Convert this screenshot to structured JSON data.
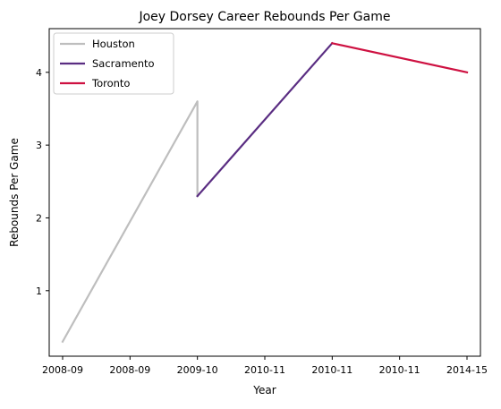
{
  "chart_data": {
    "type": "line",
    "title": "Joey Dorsey Career Rebounds Per Game",
    "xlabel": "Year",
    "ylabel": "Rebounds Per Game",
    "x_tick_labels": [
      "2008-09",
      "2008-09",
      "2009-10",
      "2010-11",
      "2010-11",
      "2010-11",
      "2014-15"
    ],
    "x_index_range": [
      0,
      6
    ],
    "ylim": [
      0.1,
      4.6
    ],
    "y_ticks": [
      1,
      2,
      3,
      4
    ],
    "grid": false,
    "legend_position": "top-left",
    "series": [
      {
        "name": "Houston",
        "color": "#bebebe",
        "points": [
          [
            0,
            0.3
          ],
          [
            2,
            3.6
          ],
          [
            2,
            2.3
          ]
        ]
      },
      {
        "name": "Sacramento",
        "color": "#5a2d82",
        "points": [
          [
            2,
            2.3
          ],
          [
            4,
            4.4
          ]
        ]
      },
      {
        "name": "Toronto",
        "color": "#ce1141",
        "points": [
          [
            4,
            4.4
          ],
          [
            6,
            4.0
          ]
        ]
      }
    ]
  }
}
